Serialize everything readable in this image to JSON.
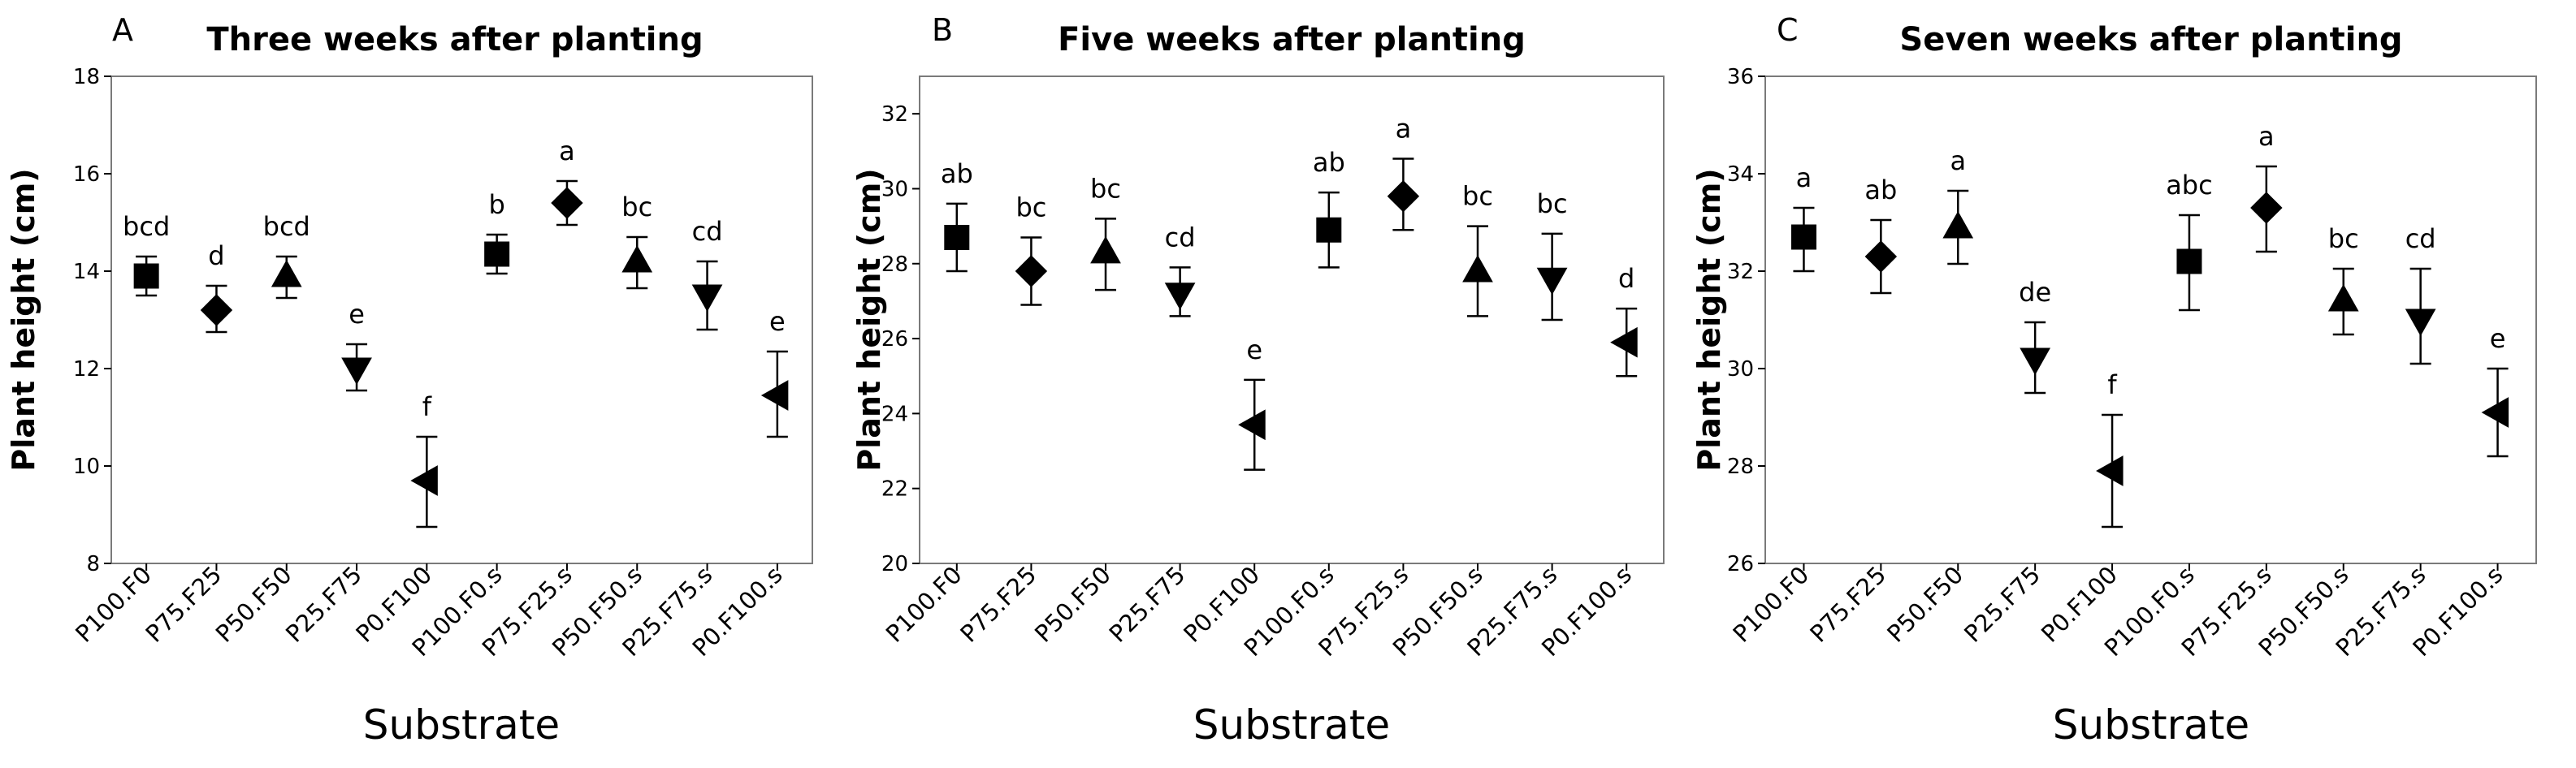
{
  "chart_data": [
    {
      "panel": "A",
      "type": "scatter",
      "title": "Three weeks after planting",
      "xlabel": "Substrate",
      "ylabel": "Plant height (cm)",
      "ylim": [
        8,
        18
      ],
      "yticks": [
        8,
        10,
        12,
        14,
        16,
        18
      ],
      "categories": [
        "P100.F0",
        "P75.F25",
        "P50.F50",
        "P25.F75",
        "P0.F100",
        "P100.F0.s",
        "P75.F25.s",
        "P50.F50.s",
        "P25.F75.s",
        "P0.F100.s"
      ],
      "values": [
        13.9,
        13.2,
        13.9,
        12.0,
        9.7,
        14.35,
        15.4,
        14.2,
        13.5,
        11.45
      ],
      "err_low": [
        13.5,
        12.75,
        13.45,
        11.55,
        8.75,
        13.95,
        14.95,
        13.65,
        12.8,
        10.6
      ],
      "err_high": [
        14.3,
        13.7,
        14.3,
        12.5,
        10.6,
        14.75,
        15.85,
        14.7,
        14.2,
        12.35
      ],
      "letters": [
        "bcd",
        "d",
        "bcd",
        "e",
        "f",
        "b",
        "a",
        "bc",
        "cd",
        "e"
      ],
      "markers": [
        "square",
        "diamond",
        "triangle-up",
        "triangle-down",
        "triangle-left",
        "square",
        "diamond",
        "triangle-up",
        "triangle-down",
        "triangle-left"
      ]
    },
    {
      "panel": "B",
      "type": "scatter",
      "title": "Five weeks after planting",
      "xlabel": "Substrate",
      "ylabel": "Plant height (cm)",
      "ylim": [
        20,
        33
      ],
      "yticks": [
        20,
        22,
        24,
        26,
        28,
        30,
        32
      ],
      "categories": [
        "P100.F0",
        "P75.F25",
        "P50.F50",
        "P25.F75",
        "P0.F100",
        "P100.F0.s",
        "P75.F25.s",
        "P50.F50.s",
        "P25.F75.s",
        "P0.F100.s"
      ],
      "values": [
        28.7,
        27.8,
        28.3,
        27.2,
        23.7,
        28.9,
        29.8,
        27.8,
        27.6,
        25.9
      ],
      "err_low": [
        27.8,
        26.9,
        27.3,
        26.6,
        22.5,
        27.9,
        28.9,
        26.6,
        26.5,
        25.0
      ],
      "err_high": [
        29.6,
        28.7,
        29.2,
        27.9,
        24.9,
        29.9,
        30.8,
        29.0,
        28.8,
        26.8
      ],
      "letters": [
        "ab",
        "bc",
        "bc",
        "cd",
        "e",
        "ab",
        "a",
        "bc",
        "bc",
        "d"
      ],
      "markers": [
        "square",
        "diamond",
        "triangle-up",
        "triangle-down",
        "triangle-left",
        "square",
        "diamond",
        "triangle-up",
        "triangle-down",
        "triangle-left"
      ]
    },
    {
      "panel": "C",
      "type": "scatter",
      "title": "Seven weeks after planting",
      "xlabel": "Substrate",
      "ylabel": "Plant height (cm)",
      "ylim": [
        26,
        36
      ],
      "yticks": [
        26,
        28,
        30,
        32,
        34,
        36
      ],
      "categories": [
        "P100.F0",
        "P75.F25",
        "P50.F50",
        "P25.F75",
        "P0.F100",
        "P100.F0.s",
        "P75.F25.s",
        "P50.F50.s",
        "P25.F75.s",
        "P0.F100.s"
      ],
      "values": [
        32.7,
        32.3,
        32.9,
        30.2,
        27.9,
        32.2,
        33.3,
        31.4,
        31.0,
        29.1
      ],
      "err_low": [
        32.0,
        31.55,
        32.15,
        29.5,
        26.75,
        31.2,
        32.4,
        30.7,
        30.1,
        28.2
      ],
      "err_high": [
        33.3,
        33.05,
        33.65,
        30.95,
        29.05,
        33.15,
        34.15,
        32.05,
        32.05,
        30.0
      ],
      "letters": [
        "a",
        "ab",
        "a",
        "de",
        "f",
        "abc",
        "a",
        "bc",
        "cd",
        "e"
      ],
      "markers": [
        "square",
        "diamond",
        "triangle-up",
        "triangle-down",
        "triangle-left",
        "square",
        "diamond",
        "triangle-up",
        "triangle-down",
        "triangle-left"
      ]
    }
  ]
}
